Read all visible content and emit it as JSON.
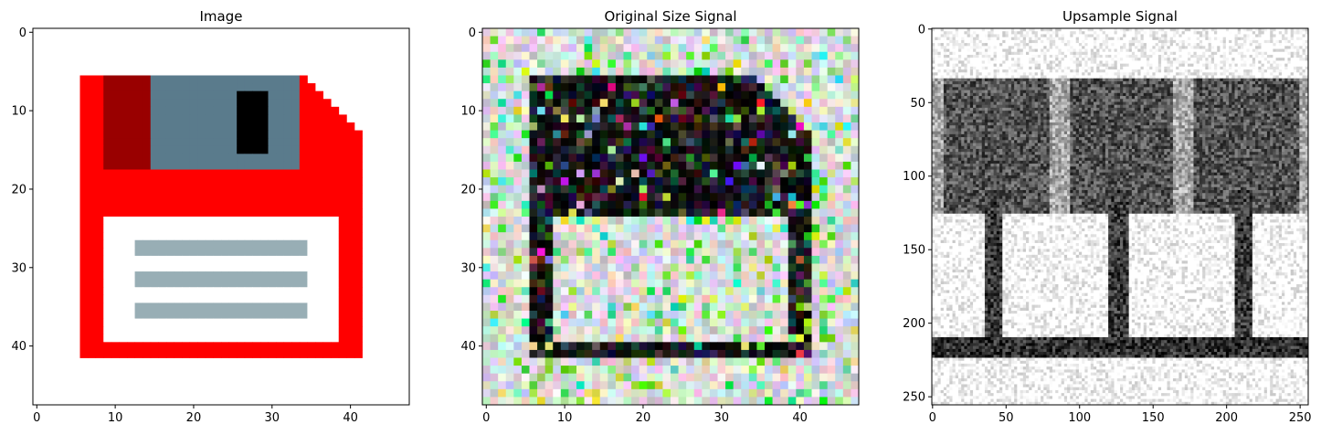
{
  "chart_data": [
    {
      "type": "heatmap",
      "title": "Image",
      "xlim": [
        -0.5,
        47.5
      ],
      "ylim": [
        47.5,
        -0.5
      ],
      "x_ticks": [
        0,
        10,
        20,
        30,
        40
      ],
      "y_ticks": [
        0,
        10,
        20,
        30,
        40
      ],
      "grid": false,
      "content": "floppy-disk-icon",
      "colors": {
        "body": "#ff0000",
        "shutter": "#5a7b8c",
        "shutter_shadow": "#990000",
        "window": "#000000",
        "label": "#ffffff",
        "label_lines": "#98aeb5"
      }
    },
    {
      "type": "heatmap",
      "title": "Original Size Signal",
      "xlim": [
        -0.5,
        47.5
      ],
      "ylim": [
        47.5,
        -0.5
      ],
      "x_ticks": [
        0,
        10,
        20,
        30,
        40
      ],
      "y_ticks": [
        0,
        10,
        20,
        30,
        40
      ],
      "grid": false,
      "content": "noisy-floppy-signal"
    },
    {
      "type": "heatmap",
      "title": "Upsample Signal",
      "xlim": [
        -0.5,
        255.5
      ],
      "ylim": [
        255.5,
        -0.5
      ],
      "x_ticks": [
        0,
        50,
        100,
        150,
        200,
        250
      ],
      "y_ticks": [
        0,
        50,
        100,
        150,
        200,
        250
      ],
      "grid": false,
      "content": "grayscale-upsampled-signal"
    }
  ]
}
